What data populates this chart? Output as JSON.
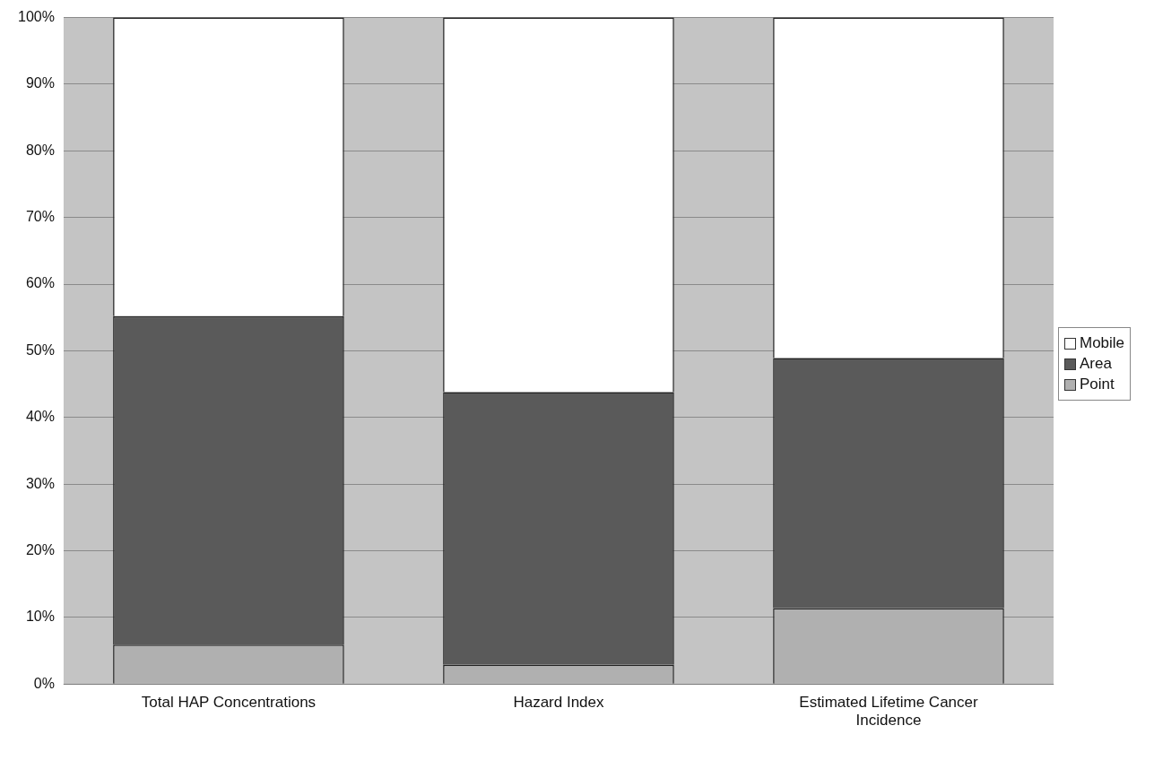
{
  "chart_data": {
    "type": "bar",
    "stacked": true,
    "categories": [
      "Total HAP Concentrations",
      "Hazard Index",
      [
        "Estimated Lifetime Cancer",
        "Incidence"
      ]
    ],
    "series": [
      {
        "name": "Point",
        "color": "#b0b0b0",
        "values": [
          5.9,
          2.9,
          11.4
        ]
      },
      {
        "name": "Area",
        "color": "#5a5a5a",
        "values": [
          49.3,
          40.9,
          37.5
        ]
      },
      {
        "name": "Mobile",
        "color": "#ffffff",
        "values": [
          44.8,
          56.2,
          51.1
        ]
      }
    ],
    "ylim": [
      0,
      100
    ],
    "yticks": [
      {
        "value": 0,
        "label": "0%"
      },
      {
        "value": 10,
        "label": "10%"
      },
      {
        "value": 20,
        "label": "20%"
      },
      {
        "value": 30,
        "label": "30%"
      },
      {
        "value": 40,
        "label": "40%"
      },
      {
        "value": 50,
        "label": "50%"
      },
      {
        "value": 60,
        "label": "60%"
      },
      {
        "value": 70,
        "label": "70%"
      },
      {
        "value": 80,
        "label": "80%"
      },
      {
        "value": 90,
        "label": "90%"
      },
      {
        "value": 100,
        "label": "100%"
      }
    ],
    "grid": "y",
    "legend": "right"
  }
}
